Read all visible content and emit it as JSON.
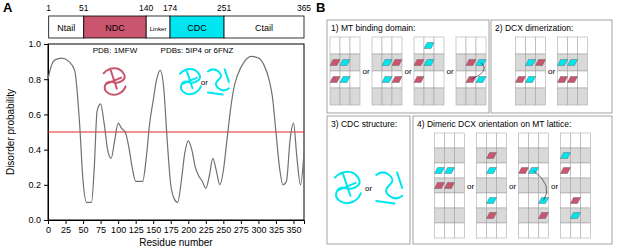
{
  "chart_data": {
    "type": "line",
    "panel_label": "A",
    "x": [
      0,
      5,
      10,
      20,
      30,
      38,
      45,
      50,
      55,
      62,
      66,
      70,
      75,
      80,
      85,
      90,
      95,
      100,
      105,
      110,
      115,
      120,
      125,
      130,
      135,
      140,
      145,
      150,
      155,
      160,
      165,
      170,
      175,
      180,
      185,
      190,
      195,
      200,
      205,
      210,
      215,
      220,
      225,
      230,
      235,
      240,
      245,
      250,
      255,
      260,
      265,
      270,
      280,
      290,
      300,
      308,
      315,
      320,
      325,
      330,
      335,
      340,
      345,
      350,
      355,
      360,
      365
    ],
    "values": [
      0.8,
      0.88,
      0.91,
      0.92,
      0.9,
      0.85,
      0.55,
      0.22,
      0.1,
      0.1,
      0.3,
      0.62,
      0.66,
      0.55,
      0.4,
      0.35,
      0.45,
      0.55,
      0.52,
      0.5,
      0.42,
      0.3,
      0.22,
      0.22,
      0.22,
      0.35,
      0.55,
      0.68,
      0.8,
      0.85,
      0.75,
      0.45,
      0.2,
      0.12,
      0.1,
      0.22,
      0.38,
      0.45,
      0.4,
      0.3,
      0.25,
      0.22,
      0.18,
      0.25,
      0.35,
      0.28,
      0.2,
      0.28,
      0.45,
      0.62,
      0.75,
      0.82,
      0.9,
      0.93,
      0.92,
      0.88,
      0.8,
      0.7,
      0.5,
      0.3,
      0.2,
      0.22,
      0.45,
      0.55,
      0.35,
      0.2,
      0.38
    ],
    "color": "#707070",
    "xlim": [
      0,
      365
    ],
    "xticks": [
      0,
      25,
      50,
      75,
      100,
      125,
      150,
      175,
      200,
      225,
      250,
      275,
      300,
      325,
      350
    ],
    "ylim": [
      0,
      1
    ],
    "yticks": [
      {
        "value": 0,
        "label": "0.0"
      },
      {
        "value": 0.2,
        "label": "0.2"
      },
      {
        "value": 0.4,
        "label": "0.4"
      },
      {
        "value": 0.6,
        "label": "0.6"
      },
      {
        "value": 0.8,
        "label": "0.8"
      },
      {
        "value": 1,
        "label": "1.0"
      }
    ],
    "xlabel": "Residue number",
    "ylabel": "Disorder probability",
    "threshold": 0.5,
    "threshold_color": "#e8251f",
    "domains": [
      {
        "label": "Ntail",
        "start": 1,
        "end": 51,
        "color": "#ffffff"
      },
      {
        "label": "NDC",
        "start": 51,
        "end": 140,
        "color": "#c9566e",
        "pdb": "PDB: 1MFW"
      },
      {
        "label": "Linker",
        "start": 140,
        "end": 174,
        "color": "#ffffff"
      },
      {
        "label": "CDC",
        "start": 174,
        "end": 251,
        "color": "#00e6f0",
        "pdb": "PDBs: 5IP4 or 6FNZ"
      },
      {
        "label": "Ctail",
        "start": 251,
        "end": 365,
        "color": "#ffffff"
      }
    ],
    "structure_separator": "or"
  },
  "diagram": {
    "panel_label": "B",
    "boxes": [
      {
        "title": "1) MT binding domain:",
        "separators": [
          "or",
          "or",
          "or"
        ]
      },
      {
        "title": "2) DCX dimerization:",
        "separators": [
          "or"
        ]
      },
      {
        "title": "3) CDC structure:",
        "separators": [
          "or"
        ]
      },
      {
        "title": "4) Dimeric DCX orientation on MT lattice:",
        "separators": [
          "or",
          "or",
          "or"
        ]
      }
    ]
  }
}
